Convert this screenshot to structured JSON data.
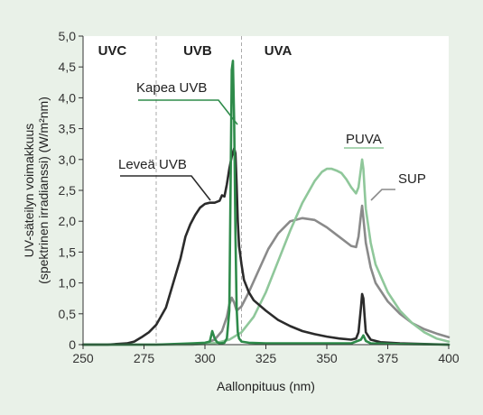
{
  "chart_data": {
    "type": "line",
    "xlabel": "Aallonpituus (nm)",
    "ylabel_line1": "UV-säteilyn voimakkuus",
    "ylabel_line2": "(spektrinen irradianssi) (W/m²nm)",
    "xlim": [
      250,
      400
    ],
    "ylim": [
      0,
      5
    ],
    "xticks": [
      "250",
      "275",
      "300",
      "325",
      "350",
      "375",
      "400"
    ],
    "yticks": [
      "0",
      "0,5",
      "1,0",
      "1,5",
      "2,0",
      "2,5",
      "3,0",
      "3,5",
      "4,0",
      "4,5",
      "5,0"
    ],
    "grid": false,
    "regions": [
      {
        "label": "UVC",
        "x": 262
      },
      {
        "label": "UVB",
        "x": 297
      },
      {
        "label": "UVA",
        "x": 330
      }
    ],
    "region_boundaries": [
      280,
      315
    ],
    "series": [
      {
        "name": "Leveä UVB",
        "color": "#2b2b2b",
        "x": [
          250,
          260,
          268,
          271,
          274,
          277,
          280,
          284,
          287,
          290,
          292,
          294,
          296,
          298,
          300,
          302,
          304,
          306,
          307,
          308,
          309,
          310,
          311,
          312,
          312.5,
          313,
          313.5,
          314,
          315,
          316,
          318,
          320,
          325,
          330,
          335,
          340,
          345,
          350,
          355,
          360,
          362,
          363,
          364,
          364.5,
          365,
          365.5,
          366,
          368,
          372,
          380,
          390,
          400
        ],
        "y": [
          0,
          0,
          0.02,
          0.05,
          0.12,
          0.2,
          0.32,
          0.6,
          1.0,
          1.4,
          1.75,
          1.95,
          2.1,
          2.22,
          2.28,
          2.3,
          2.3,
          2.33,
          2.42,
          2.4,
          2.6,
          2.85,
          3.05,
          3.18,
          3.1,
          2.6,
          2.0,
          1.6,
          1.3,
          1.05,
          0.85,
          0.72,
          0.55,
          0.4,
          0.3,
          0.22,
          0.17,
          0.13,
          0.1,
          0.08,
          0.1,
          0.2,
          0.6,
          0.82,
          0.75,
          0.45,
          0.2,
          0.08,
          0.04,
          0.02,
          0.01,
          0
        ]
      },
      {
        "name": "Kapea UVB",
        "color": "#2e8b4a",
        "x": [
          250,
          280,
          295,
          300,
          302,
          303,
          304,
          305,
          306,
          308,
          309,
          310,
          310.5,
          311,
          311.5,
          312,
          312.5,
          313,
          313.5,
          314,
          315,
          318,
          325,
          340,
          360,
          364,
          365,
          366,
          368,
          380,
          400
        ],
        "y": [
          0,
          0,
          0.02,
          0.03,
          0.05,
          0.22,
          0.1,
          0.04,
          0.02,
          0.03,
          0.1,
          0.55,
          2.4,
          4.45,
          4.6,
          3.6,
          1.8,
          0.6,
          0.2,
          0.1,
          0.05,
          0.03,
          0.02,
          0.02,
          0.02,
          0.08,
          0.15,
          0.06,
          0.02,
          0.01,
          0
        ]
      },
      {
        "name": "PUVA",
        "color": "#8fc79a",
        "x": [
          250,
          290,
          300,
          305,
          310,
          315,
          320,
          325,
          330,
          335,
          340,
          345,
          348,
          350,
          352,
          354,
          356,
          358,
          360,
          362,
          363,
          364,
          364.5,
          365,
          365.5,
          366,
          368,
          370,
          375,
          380,
          385,
          390,
          395,
          400
        ],
        "y": [
          0,
          0,
          0.01,
          0.03,
          0.08,
          0.2,
          0.45,
          0.85,
          1.35,
          1.85,
          2.3,
          2.65,
          2.8,
          2.85,
          2.85,
          2.82,
          2.78,
          2.68,
          2.55,
          2.45,
          2.55,
          2.85,
          3.0,
          2.85,
          2.5,
          2.2,
          1.65,
          1.3,
          0.85,
          0.55,
          0.35,
          0.2,
          0.1,
          0.05
        ]
      },
      {
        "name": "SUP",
        "color": "#8a8a8a",
        "x": [
          250,
          295,
          300,
          304,
          307,
          309,
          310,
          311,
          312,
          313,
          315,
          318,
          322,
          326,
          330,
          335,
          340,
          345,
          350,
          355,
          360,
          362,
          363,
          364,
          364.5,
          365,
          366,
          368,
          370,
          375,
          380,
          385,
          390,
          395,
          400
        ],
        "y": [
          0,
          0,
          0.02,
          0.08,
          0.22,
          0.45,
          0.65,
          0.76,
          0.68,
          0.55,
          0.62,
          0.85,
          1.2,
          1.55,
          1.8,
          2.0,
          2.05,
          2.02,
          1.9,
          1.75,
          1.6,
          1.58,
          1.75,
          2.1,
          2.25,
          2.05,
          1.65,
          1.25,
          1.0,
          0.7,
          0.5,
          0.35,
          0.25,
          0.18,
          0.12
        ]
      }
    ]
  }
}
